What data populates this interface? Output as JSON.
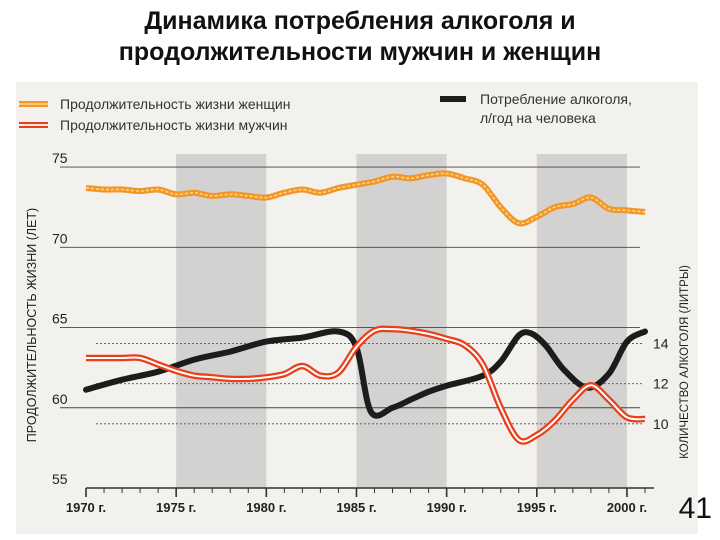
{
  "slide": {
    "title_line1": "Динамика потребления алкоголя и",
    "title_line2": "продолжительности мужчин и женщин",
    "page_number": "41"
  },
  "chart_data": {
    "type": "line",
    "legend": {
      "women": "Продолжительность жизни женщин",
      "men": "Продолжительность жизни мужчин",
      "alcohol_line1": "Потребление алкоголя,",
      "alcohol_line2": "л/год на человека"
    },
    "ylabel_left": "ПРОДОЛЖИТЕЛЬНОСТЬ ЖИЗНИ (ЛЕТ)",
    "ylabel_right": "КОЛИЧЕСТВО АЛКОГОЛЯ (ЛИТРЫ)",
    "left_axis": {
      "ticks": [
        "55",
        "60",
        "65",
        "70",
        "75"
      ],
      "values": [
        55,
        60,
        65,
        70,
        75
      ],
      "ylim": [
        55,
        76
      ]
    },
    "right_axis": {
      "ticks": [
        "10",
        "12",
        "14"
      ],
      "values": [
        10,
        12,
        14
      ]
    },
    "x_axis": {
      "xlim": [
        1970,
        2001.5
      ],
      "tick_labels": [
        "1970 г.",
        "1975 г.",
        "1980 г.",
        "1985 г.",
        "1990 г.",
        "1995 г.",
        "2000 г."
      ],
      "tick_values": [
        1970,
        1975,
        1980,
        1985,
        1990,
        1995,
        2000
      ]
    },
    "shaded_periods": [
      [
        1975,
        1980
      ],
      [
        1985,
        1990
      ],
      [
        1995,
        2000
      ]
    ],
    "series": [
      {
        "key": "women",
        "color": "#f0962a",
        "x": [
          1970,
          1971,
          1972,
          1973,
          1974,
          1975,
          1976,
          1977,
          1978,
          1979,
          1980,
          1981,
          1982,
          1983,
          1984,
          1985,
          1986,
          1987,
          1988,
          1989,
          1990,
          1991,
          1992,
          1993,
          1994,
          1995,
          1996,
          1997,
          1998,
          1999,
          2000,
          2001
        ],
        "y": [
          73.7,
          73.6,
          73.6,
          73.5,
          73.6,
          73.3,
          73.4,
          73.2,
          73.3,
          73.2,
          73.1,
          73.4,
          73.6,
          73.4,
          73.7,
          73.9,
          74.1,
          74.4,
          74.3,
          74.5,
          74.6,
          74.3,
          73.9,
          72.5,
          71.5,
          71.9,
          72.5,
          72.7,
          73.1,
          72.4,
          72.3,
          72.2
        ]
      },
      {
        "key": "men",
        "color": "#e8401a",
        "x": [
          1970,
          1971,
          1972,
          1973,
          1974,
          1975,
          1976,
          1977,
          1978,
          1979,
          1980,
          1981,
          1982,
          1983,
          1984,
          1985,
          1986,
          1987,
          1988,
          1989,
          1990,
          1991,
          1992,
          1993,
          1994,
          1995,
          1996,
          1997,
          1998,
          1999,
          2000,
          2001
        ],
        "y": [
          63.1,
          63.1,
          63.1,
          63.1,
          62.7,
          62.3,
          62.0,
          61.9,
          61.8,
          61.8,
          61.9,
          62.1,
          62.6,
          62.0,
          62.2,
          63.8,
          64.8,
          64.9,
          64.8,
          64.6,
          64.3,
          63.9,
          62.7,
          60.0,
          58.0,
          58.3,
          59.2,
          60.5,
          61.4,
          60.5,
          59.4,
          59.3
        ]
      },
      {
        "key": "alcohol",
        "color": "#1c1c1c",
        "x": [
          1970,
          1972,
          1974,
          1976,
          1978,
          1980,
          1982,
          1984,
          1985,
          1985.8,
          1987,
          1988,
          1989,
          1990,
          1992,
          1993,
          1994,
          1994.7,
          1995.5,
          1996.5,
          1997.8,
          1999,
          2000,
          2001
        ],
        "y": [
          11.7,
          12.2,
          12.6,
          13.2,
          13.6,
          14.1,
          14.3,
          14.6,
          13.8,
          10.6,
          10.8,
          11.2,
          11.6,
          11.9,
          12.4,
          13.1,
          14.4,
          14.5,
          13.9,
          12.7,
          11.8,
          12.5,
          14.1,
          14.6
        ]
      }
    ]
  }
}
